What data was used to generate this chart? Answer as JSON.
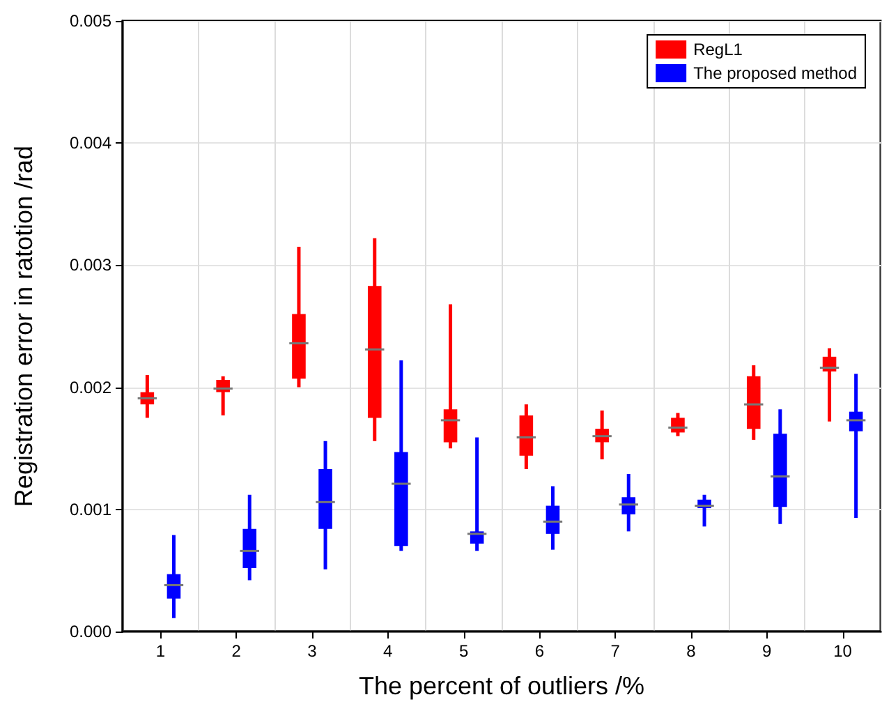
{
  "chart_data": {
    "type": "box",
    "xlabel": "The percent of outliers /%",
    "ylabel": "Registration error in ratotion /rad",
    "categories": [
      "1",
      "2",
      "3",
      "4",
      "5",
      "6",
      "7",
      "8",
      "9",
      "10"
    ],
    "ylim": [
      0,
      0.005
    ],
    "yticks": [
      {
        "value": 0,
        "label": "0.000"
      },
      {
        "value": 0.001,
        "label": "0.001"
      },
      {
        "value": 0.002,
        "label": "0.002"
      },
      {
        "value": 0.003,
        "label": "0.003"
      },
      {
        "value": 0.004,
        "label": "0.004"
      },
      {
        "value": 0.005,
        "label": "0.005"
      }
    ],
    "grid": true,
    "legend": "top right",
    "series": [
      {
        "name": "RegL1",
        "color": "#ff0000",
        "boxes": [
          {
            "low": 0.00175,
            "q1": 0.00186,
            "median": 0.00191,
            "q3": 0.00196,
            "high": 0.0021
          },
          {
            "low": 0.00177,
            "q1": 0.00196,
            "median": 0.00199,
            "q3": 0.00206,
            "high": 0.00209
          },
          {
            "low": 0.002,
            "q1": 0.00207,
            "median": 0.00236,
            "q3": 0.0026,
            "high": 0.00315
          },
          {
            "low": 0.00156,
            "q1": 0.00175,
            "median": 0.00231,
            "q3": 0.00283,
            "high": 0.00322
          },
          {
            "low": 0.0015,
            "q1": 0.00155,
            "median": 0.00173,
            "q3": 0.00182,
            "high": 0.00268
          },
          {
            "low": 0.00133,
            "q1": 0.00144,
            "median": 0.00159,
            "q3": 0.00177,
            "high": 0.00186
          },
          {
            "low": 0.00141,
            "q1": 0.00155,
            "median": 0.0016,
            "q3": 0.00166,
            "high": 0.00181
          },
          {
            "low": 0.0016,
            "q1": 0.00163,
            "median": 0.00167,
            "q3": 0.00175,
            "high": 0.00179
          },
          {
            "low": 0.00157,
            "q1": 0.00166,
            "median": 0.00186,
            "q3": 0.00209,
            "high": 0.00218
          },
          {
            "low": 0.00172,
            "q1": 0.00213,
            "median": 0.00216,
            "q3": 0.00225,
            "high": 0.00232
          }
        ]
      },
      {
        "name": "The proposed method",
        "color": "#0000ff",
        "boxes": [
          {
            "low": 0.00011,
            "q1": 0.00027,
            "median": 0.00038,
            "q3": 0.00047,
            "high": 0.00079
          },
          {
            "low": 0.00042,
            "q1": 0.00052,
            "median": 0.00066,
            "q3": 0.00084,
            "high": 0.00112
          },
          {
            "low": 0.00051,
            "q1": 0.00084,
            "median": 0.00106,
            "q3": 0.00133,
            "high": 0.00156
          },
          {
            "low": 0.00066,
            "q1": 0.0007,
            "median": 0.00121,
            "q3": 0.00147,
            "high": 0.00222
          },
          {
            "low": 0.00066,
            "q1": 0.00072,
            "median": 0.0008,
            "q3": 0.00082,
            "high": 0.00159
          },
          {
            "low": 0.00067,
            "q1": 0.0008,
            "median": 0.0009,
            "q3": 0.00103,
            "high": 0.00119
          },
          {
            "low": 0.00082,
            "q1": 0.00096,
            "median": 0.00104,
            "q3": 0.0011,
            "high": 0.00129
          },
          {
            "low": 0.00086,
            "q1": 0.00101,
            "median": 0.00103,
            "q3": 0.00108,
            "high": 0.00112
          },
          {
            "low": 0.00088,
            "q1": 0.00102,
            "median": 0.00127,
            "q3": 0.00162,
            "high": 0.00182
          },
          {
            "low": 0.00093,
            "q1": 0.00164,
            "median": 0.00173,
            "q3": 0.0018,
            "high": 0.00211
          }
        ]
      }
    ]
  }
}
